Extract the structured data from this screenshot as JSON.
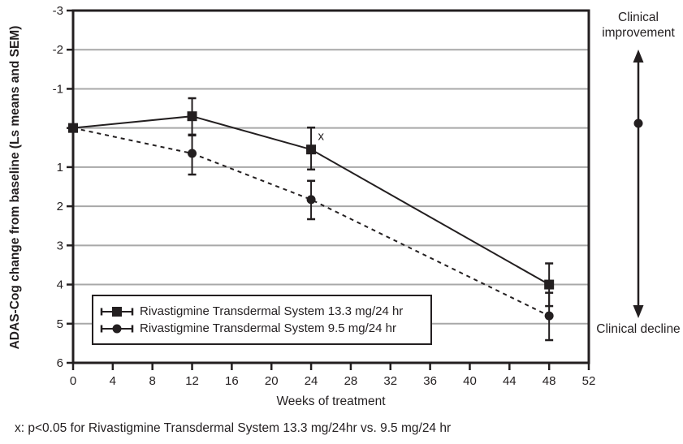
{
  "colors": {
    "ink": "#231f20",
    "grid": "#a8a8a8",
    "background": "#ffffff"
  },
  "chart_data": {
    "type": "line",
    "title": "",
    "xlabel": "Weeks of treatment",
    "ylabel": "ADAS-Cog change from baseline (Ls means and SEM)",
    "xlim": [
      0,
      52
    ],
    "ylim_top_to_bottom": [
      -3,
      6
    ],
    "xticks": [
      0,
      4,
      8,
      12,
      16,
      20,
      24,
      28,
      32,
      36,
      40,
      44,
      48,
      52
    ],
    "yticks": [
      -3,
      -2,
      -1,
      0,
      1,
      2,
      3,
      4,
      5,
      6
    ],
    "ytick_labels": [
      "-3",
      "-2",
      "-1",
      "",
      "1",
      "2",
      "3",
      "4",
      "5",
      "6"
    ],
    "gridlines_y": [
      -2,
      -1,
      0,
      1,
      2,
      3,
      4,
      5
    ],
    "grid": "horizontal",
    "legend_position": "lower-left-inside",
    "x": [
      0,
      12,
      24,
      48
    ],
    "series": [
      {
        "name": "Rivastigmine Transdermal System 13.3 mg/24 hr",
        "marker": "square",
        "line_style": "solid",
        "values": [
          0,
          -0.3,
          0.55,
          4.0
        ],
        "err_low": [
          null,
          -0.76,
          -0.01,
          3.46
        ],
        "err_high": [
          null,
          0.17,
          1.06,
          4.55
        ]
      },
      {
        "name": "Rivastigmine Transdermal System 9.5 mg/24 hr",
        "marker": "circle",
        "line_style": "dashed",
        "values": [
          0,
          0.65,
          1.83,
          4.8
        ],
        "err_low": [
          null,
          0.19,
          1.35,
          4.21
        ],
        "err_high": [
          null,
          1.19,
          2.33,
          5.42
        ]
      }
    ],
    "annotations": {
      "significance": {
        "text": "x",
        "week": 25,
        "value": 0.2
      },
      "right_axis": {
        "top_label": "Clinical improvement",
        "bottom_label": "Clinical decline"
      }
    },
    "footnote": "x: p<0.05 for Rivastigmine Transdermal System 13.3 mg/24hr vs. 9.5 mg/24 hr"
  }
}
